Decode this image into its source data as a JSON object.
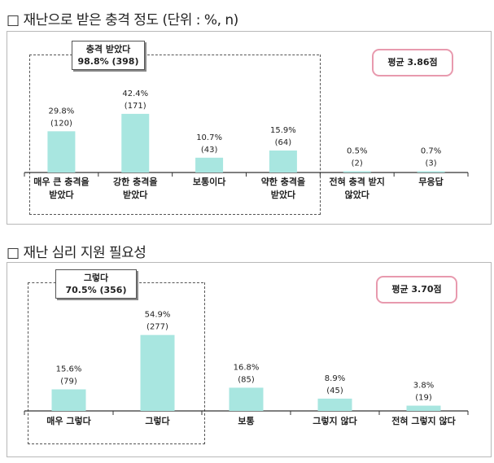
{
  "sections": [
    {
      "title": "□ 재난으로 받은 충격 정도 (단위 : %, n)",
      "average": "평균 3.86점",
      "group_label_line1": "충격 받았다",
      "group_label_line2": "98.8% (398)"
    },
    {
      "title": "□ 재난 심리 지원 필요성",
      "average": "평균 3.70점",
      "group_label_line1": "그렇다",
      "group_label_line2": "70.5% (356)"
    }
  ],
  "chart_data": [
    {
      "type": "bar",
      "categories": [
        "매우 큰 충격을 받았다",
        "강한 충격을 받았다",
        "보통이다",
        "약한 충격을 받았다",
        "전혀 충격 받지 않았다",
        "무응답"
      ],
      "category_lines": [
        [
          "매우 큰 충격을",
          "받았다"
        ],
        [
          "강한 충격을",
          "받았다"
        ],
        [
          "보통이다"
        ],
        [
          "약한 충격을",
          "받았다"
        ],
        [
          "전혀 충격 받지",
          "않았다"
        ],
        [
          "무응답"
        ]
      ],
      "values": [
        29.8,
        42.4,
        10.7,
        15.9,
        0.5,
        0.7
      ],
      "value_labels": [
        "29.8%",
        "42.4%",
        "10.7%",
        "15.9%",
        "0.5%",
        "0.7%"
      ],
      "counts": [
        "(120)",
        "(171)",
        "(43)",
        "(64)",
        "(2)",
        "(3)"
      ],
      "bar_color": "#a8e6e0",
      "grouped_categories": [
        0,
        1,
        2,
        3
      ]
    },
    {
      "type": "bar",
      "categories": [
        "매우 그렇다",
        "그렇다",
        "보통",
        "그렇지 않다",
        "전혀 그렇지 않다"
      ],
      "category_lines": [
        [
          "매우 그렇다"
        ],
        [
          "그렇다"
        ],
        [
          "보통"
        ],
        [
          "그렇지 않다"
        ],
        [
          "전혀 그렇지 않다"
        ]
      ],
      "values": [
        15.6,
        54.9,
        16.8,
        8.9,
        3.8
      ],
      "value_labels": [
        "15.6%",
        "54.9%",
        "16.8%",
        "8.9%",
        "3.8%"
      ],
      "counts": [
        "(79)",
        "(277)",
        "(85)",
        "(45)",
        "(19)"
      ],
      "bar_color": "#a8e6e0",
      "grouped_categories": [
        0,
        1
      ]
    }
  ]
}
